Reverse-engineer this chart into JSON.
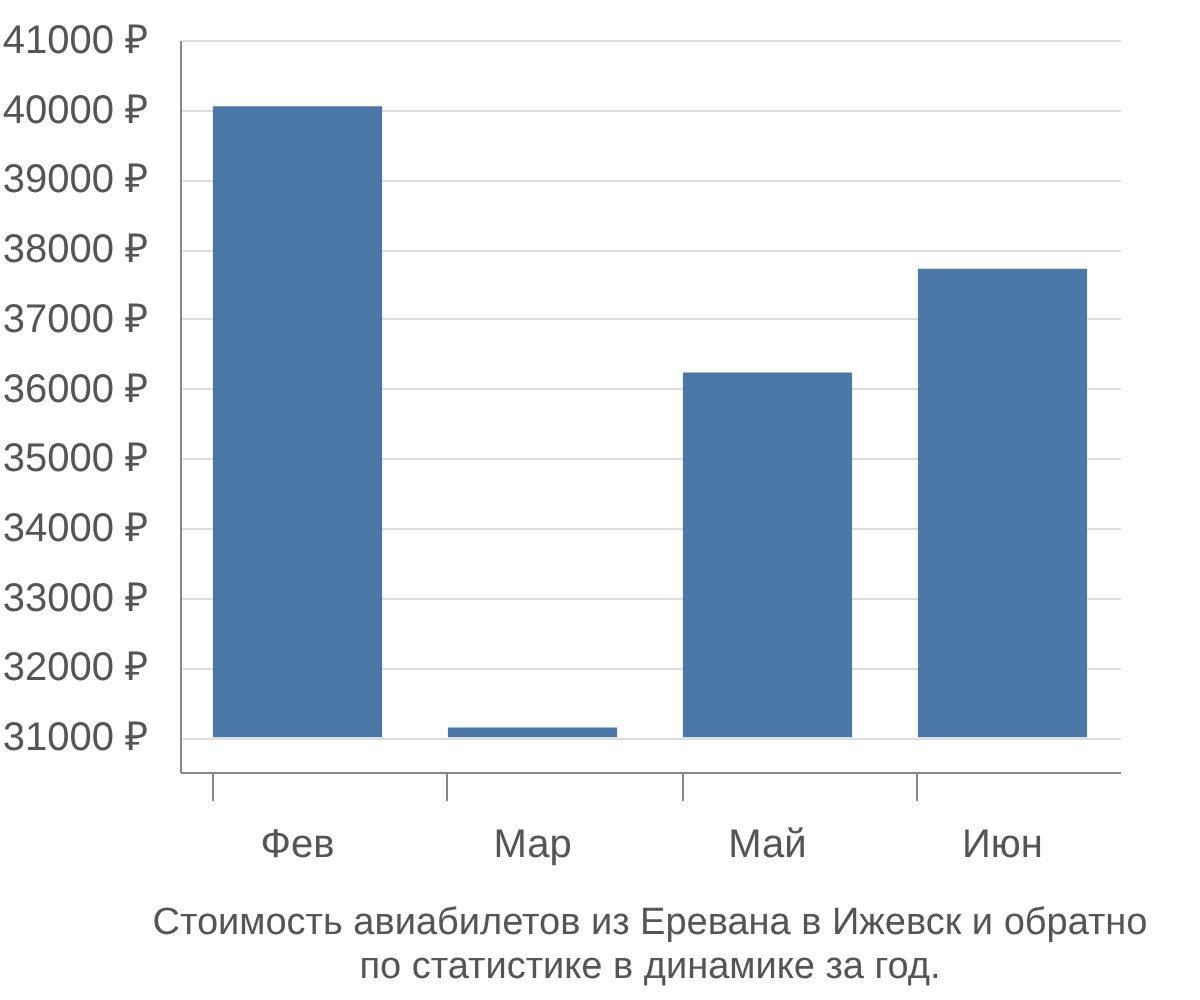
{
  "chart_data": {
    "type": "bar",
    "title": "Стоимость авиабилетов из Еревана в Ижевск и обратно",
    "subtitle": "по статистике в динамике за год.",
    "categories": [
      "Фев",
      "Мар",
      "Май",
      "Июн"
    ],
    "base": [
      31000,
      31000,
      31000,
      31000
    ],
    "values": [
      9050,
      140,
      5230,
      6720
    ],
    "color": "#4c78a8",
    "ylim": [
      30500,
      41000
    ],
    "yticks": [
      {
        "value": 31000,
        "label": "31000 ₽"
      },
      {
        "value": 32000,
        "label": "32000 ₽"
      },
      {
        "value": 33000,
        "label": "33000 ₽"
      },
      {
        "value": 34000,
        "label": "34000 ₽"
      },
      {
        "value": 35000,
        "label": "35000 ₽"
      },
      {
        "value": 36000,
        "label": "36000 ₽"
      },
      {
        "value": 37000,
        "label": "37000 ₽"
      },
      {
        "value": 38000,
        "label": "38000 ₽"
      },
      {
        "value": 39000,
        "label": "39000 ₽"
      },
      {
        "value": 40000,
        "label": "40000 ₽"
      },
      {
        "value": 41000,
        "label": "41000 ₽"
      }
    ],
    "grid": "y"
  }
}
